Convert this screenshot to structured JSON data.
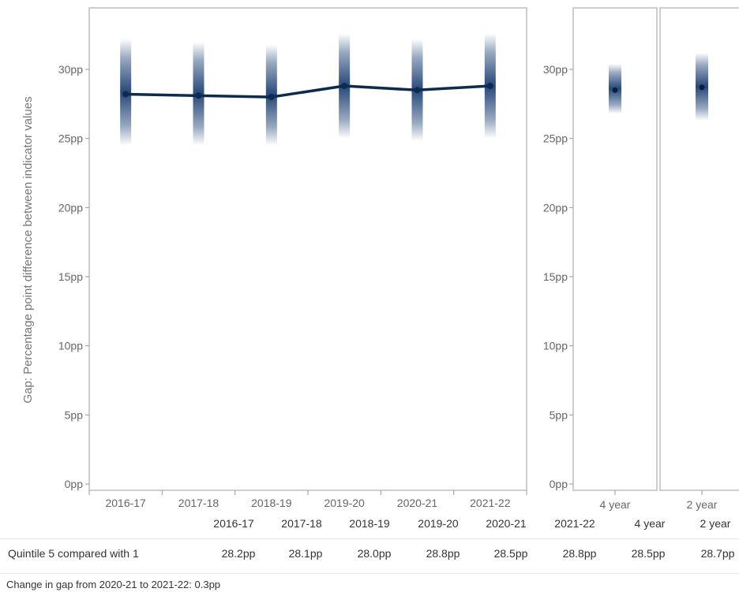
{
  "chart_data": [
    {
      "type": "line",
      "ylabel": "Gap: Percentage point difference between indicator values",
      "ylim": [
        0,
        32.5
      ],
      "yticks": [
        "0pp",
        "5pp",
        "10pp",
        "15pp",
        "20pp",
        "25pp",
        "30pp"
      ],
      "ytick_values": [
        0,
        5,
        10,
        15,
        20,
        25,
        30
      ],
      "categories": [
        "2016-17",
        "2017-18",
        "2018-19",
        "2019-20",
        "2020-21",
        "2021-22"
      ],
      "series": [
        {
          "values": [
            28.2,
            28.1,
            28.0,
            28.8,
            28.5,
            28.8
          ],
          "uncertainty_low": [
            24.5,
            24.5,
            24.5,
            25.0,
            24.8,
            25.0
          ],
          "uncertainty_high": [
            32.2,
            32.0,
            31.8,
            32.6,
            32.2,
            32.6
          ]
        }
      ],
      "color": "#0d2b4e",
      "grid": false
    },
    {
      "type": "scatter",
      "categories": [
        "4 year"
      ],
      "values": [
        28.5
      ],
      "uncertainty_low": [
        26.8
      ],
      "uncertainty_high": [
        30.4
      ],
      "ylim": [
        0,
        32.5
      ],
      "yticks": [
        "0pp",
        "5pp",
        "10pp",
        "15pp",
        "20pp",
        "25pp",
        "30pp"
      ]
    },
    {
      "type": "scatter",
      "categories": [
        "2 year"
      ],
      "values": [
        28.7
      ],
      "uncertainty_low": [
        26.3
      ],
      "uncertainty_high": [
        31.2
      ],
      "ylim": [
        0,
        32.5
      ]
    }
  ],
  "table": {
    "headers": [
      "2016-17",
      "2017-18",
      "2018-19",
      "2019-20",
      "2020-21",
      "2021-22",
      "4 year",
      "2 year"
    ],
    "row_label": "Quintile 5 compared with 1",
    "row_values": [
      "28.2pp",
      "28.1pp",
      "28.0pp",
      "28.8pp",
      "28.5pp",
      "28.8pp",
      "28.5pp",
      "28.7pp"
    ]
  },
  "footer": "Change in gap from 2020-21 to 2021-22: 0.3pp"
}
